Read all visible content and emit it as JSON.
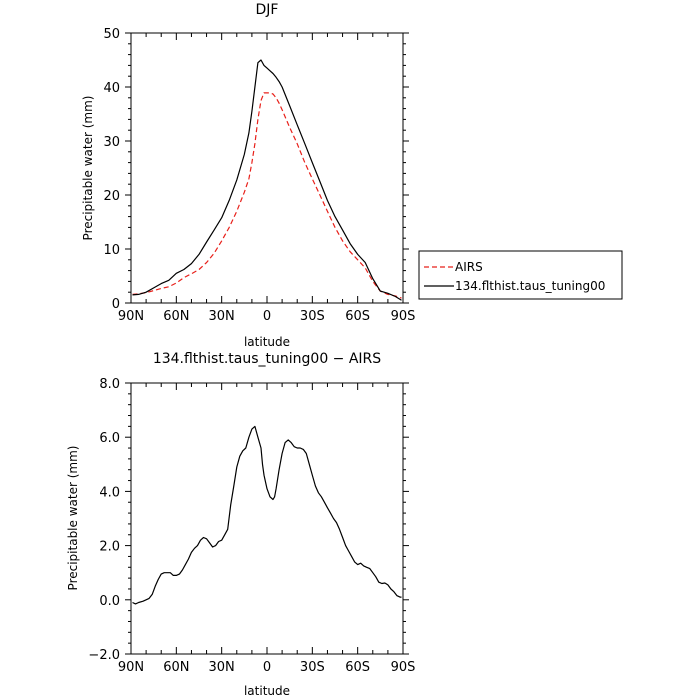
{
  "figure": {
    "legend": {
      "items": [
        {
          "label": "AIRS",
          "color": "#e8201a",
          "dash": "dashed"
        },
        {
          "label": "134.flthist.taus_tuning00",
          "color": "#000000",
          "dash": "solid"
        }
      ]
    }
  },
  "chart_data": [
    {
      "type": "line",
      "title": "DJF",
      "xlabel": "latitude",
      "ylabel": "Precipitable water (mm)",
      "xlim": [
        90,
        -90
      ],
      "ylim": [
        0,
        50
      ],
      "xticks": [
        90,
        60,
        30,
        0,
        -30,
        -60,
        -90
      ],
      "xtick_labels": [
        "90N",
        "60N",
        "30N",
        "0",
        "30S",
        "60S",
        "90S"
      ],
      "yticks": [
        0,
        10,
        20,
        30,
        40,
        50
      ],
      "ytick_labels": [
        "0",
        "10",
        "20",
        "30",
        "40",
        "50"
      ],
      "grid": false,
      "legend_position": "right",
      "series": [
        {
          "name": "AIRS",
          "color": "#e8201a",
          "dash": "dashed",
          "x": [
            89,
            85,
            80,
            75,
            70,
            65,
            60,
            55,
            50,
            45,
            40,
            35,
            30,
            25,
            20,
            15,
            12,
            10,
            8,
            6,
            4,
            2,
            0,
            -2,
            -4,
            -6,
            -8,
            -10,
            -15,
            -20,
            -25,
            -30,
            -35,
            -40,
            -45,
            -50,
            -55,
            -60,
            -65,
            -70,
            -75,
            -80,
            -85,
            -89
          ],
          "y": [
            1.6,
            1.7,
            1.9,
            2.3,
            2.7,
            3.0,
            3.7,
            4.7,
            5.4,
            6.2,
            7.5,
            9.2,
            11.5,
            14.0,
            17.0,
            20.5,
            23.0,
            26.0,
            29.5,
            34.0,
            37.5,
            38.9,
            38.9,
            38.9,
            38.7,
            38.0,
            37.0,
            35.8,
            32.5,
            29.5,
            26.0,
            23.0,
            20.0,
            17.0,
            14.0,
            11.5,
            9.5,
            8.0,
            6.5,
            4.0,
            2.2,
            1.6,
            1.3,
            0.9
          ]
        },
        {
          "name": "134.flthist.taus_tuning00",
          "color": "#000000",
          "dash": "solid",
          "x": [
            89,
            85,
            80,
            75,
            70,
            65,
            60,
            55,
            50,
            45,
            40,
            35,
            30,
            25,
            20,
            15,
            12,
            10,
            8,
            6,
            4,
            2,
            0,
            -2,
            -4,
            -6,
            -8,
            -10,
            -15,
            -20,
            -25,
            -30,
            -35,
            -40,
            -45,
            -50,
            -55,
            -60,
            -65,
            -70,
            -75,
            -80,
            -85,
            -89
          ],
          "y": [
            1.5,
            1.6,
            2.0,
            2.8,
            3.6,
            4.2,
            5.5,
            6.2,
            7.3,
            9.0,
            11.3,
            13.5,
            15.8,
            19.0,
            22.8,
            27.5,
            31.5,
            35.5,
            40.0,
            44.5,
            45.0,
            44.0,
            43.5,
            43.0,
            42.5,
            41.8,
            41.0,
            40.0,
            36.5,
            33.0,
            29.5,
            26.0,
            22.5,
            19.0,
            16.0,
            13.5,
            11.0,
            9.0,
            7.5,
            4.5,
            2.2,
            1.8,
            1.2,
            0.5
          ]
        }
      ]
    },
    {
      "type": "line",
      "title": "134.flthist.taus_tuning00 − AIRS",
      "xlabel": "latitude",
      "ylabel": "Precipitable water (mm)",
      "xlim": [
        90,
        -90
      ],
      "ylim": [
        -2,
        8
      ],
      "xticks": [
        90,
        60,
        30,
        0,
        -30,
        -60,
        -90
      ],
      "xtick_labels": [
        "90N",
        "60N",
        "30N",
        "0",
        "30S",
        "60S",
        "90S"
      ],
      "yticks": [
        -2,
        0,
        2,
        4,
        6,
        8
      ],
      "ytick_labels": [
        "−2.0",
        "0.0",
        "2.0",
        "4.0",
        "6.0",
        "8.0"
      ],
      "grid": false,
      "series": [
        {
          "color": "#000000",
          "dash": "solid",
          "x": [
            89,
            87,
            85,
            82,
            80,
            78,
            76,
            74,
            72,
            70,
            68,
            66,
            64,
            62,
            60,
            58,
            56,
            54,
            52,
            50,
            48,
            46,
            44,
            42,
            40,
            38,
            36,
            34,
            32,
            30,
            28,
            26,
            24,
            22,
            20,
            18,
            16,
            14,
            12,
            10,
            8,
            6,
            4,
            3,
            2,
            0,
            -2,
            -4,
            -5,
            -6,
            -8,
            -10,
            -12,
            -14,
            -16,
            -18,
            -20,
            -22,
            -24,
            -26,
            -28,
            -30,
            -32,
            -34,
            -36,
            -38,
            -40,
            -42,
            -44,
            -46,
            -48,
            -50,
            -52,
            -54,
            -56,
            -58,
            -60,
            -62,
            -64,
            -66,
            -68,
            -70,
            -72,
            -74,
            -76,
            -78,
            -80,
            -82,
            -84,
            -86,
            -88,
            -89
          ],
          "y": [
            -0.1,
            -0.15,
            -0.1,
            -0.05,
            0.0,
            0.05,
            0.2,
            0.5,
            0.75,
            0.95,
            1.0,
            1.0,
            1.0,
            0.9,
            0.9,
            0.95,
            1.1,
            1.3,
            1.5,
            1.75,
            1.9,
            2.0,
            2.2,
            2.3,
            2.25,
            2.1,
            1.95,
            2.0,
            2.15,
            2.2,
            2.4,
            2.6,
            3.5,
            4.2,
            4.9,
            5.3,
            5.5,
            5.6,
            6.0,
            6.3,
            6.4,
            6.0,
            5.6,
            5.0,
            4.6,
            4.1,
            3.8,
            3.7,
            3.8,
            4.1,
            4.8,
            5.4,
            5.8,
            5.9,
            5.8,
            5.65,
            5.6,
            5.6,
            5.55,
            5.4,
            5.0,
            4.6,
            4.2,
            3.95,
            3.8,
            3.6,
            3.4,
            3.2,
            3.0,
            2.85,
            2.6,
            2.3,
            2.0,
            1.8,
            1.6,
            1.4,
            1.3,
            1.35,
            1.25,
            1.2,
            1.15,
            1.0,
            0.85,
            0.65,
            0.6,
            0.62,
            0.55,
            0.4,
            0.3,
            0.15,
            0.1,
            0.1
          ]
        }
      ]
    }
  ]
}
